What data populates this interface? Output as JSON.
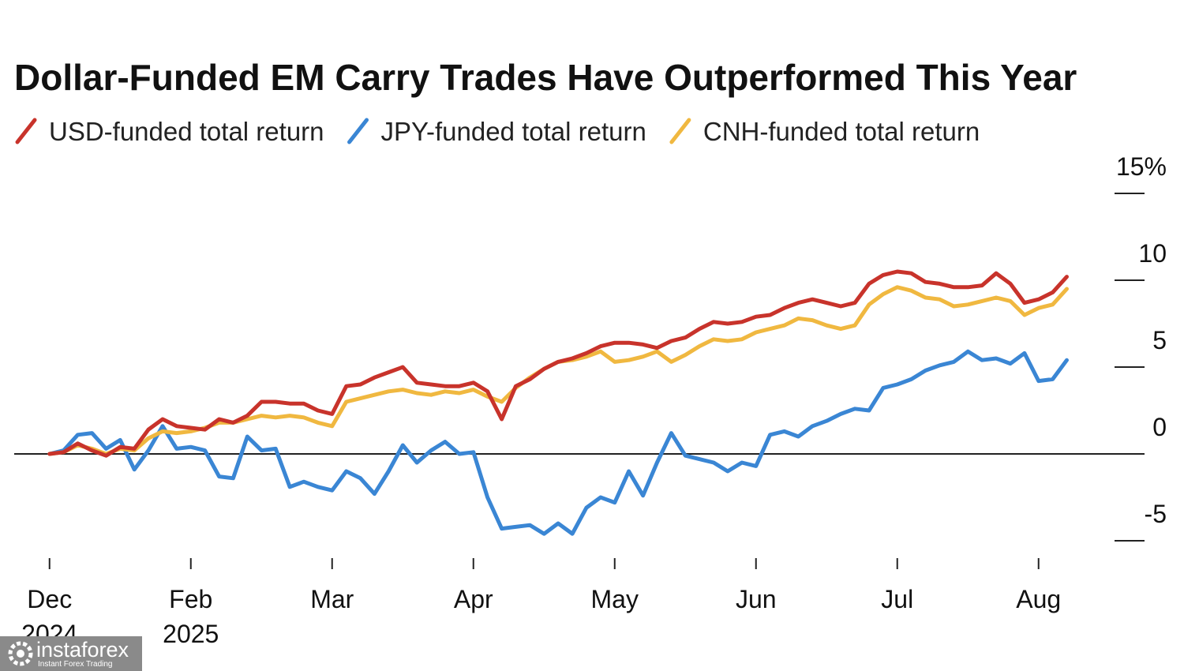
{
  "chart_data": {
    "type": "line",
    "title": "Dollar-Funded EM Carry Trades Have Outperformed This Year",
    "x": [
      0,
      0.1,
      0.2,
      0.3,
      0.4,
      0.5,
      0.6,
      0.7,
      0.8,
      0.9,
      1.0,
      1.1,
      1.2,
      1.3,
      1.4,
      1.5,
      1.6,
      1.7,
      1.8,
      1.9,
      2.0,
      2.1,
      2.2,
      2.3,
      2.4,
      2.5,
      2.6,
      2.7,
      2.8,
      2.9,
      3.0,
      3.1,
      3.2,
      3.3,
      3.4,
      3.5,
      3.6,
      3.7,
      3.8,
      3.9,
      4.0,
      4.1,
      4.2,
      4.3,
      4.4,
      4.5,
      4.6,
      4.7,
      4.8,
      4.9,
      5.0,
      5.1,
      5.2,
      5.3,
      5.4,
      5.5,
      5.6,
      5.7,
      5.8,
      5.9,
      6.0,
      6.1,
      6.2,
      6.3,
      6.4,
      6.5,
      6.6,
      6.7,
      6.8,
      6.9,
      7.0,
      7.1,
      7.2
    ],
    "series": [
      {
        "name": "USD-funded total return",
        "color": "#c8332b",
        "values": [
          0,
          0.1,
          0.6,
          0.2,
          -0.1,
          0.4,
          0.3,
          1.4,
          2.0,
          1.6,
          1.5,
          1.4,
          2.0,
          1.8,
          2.2,
          3.0,
          3.0,
          2.9,
          2.9,
          2.5,
          2.3,
          3.9,
          4.0,
          4.4,
          4.7,
          5.0,
          4.1,
          4.0,
          3.9,
          3.9,
          4.1,
          3.6,
          2.0,
          3.9,
          4.3,
          4.9,
          5.3,
          5.5,
          5.8,
          6.2,
          6.4,
          6.4,
          6.3,
          6.1,
          6.5,
          6.7,
          7.2,
          7.6,
          7.5,
          7.6,
          7.9,
          8.0,
          8.4,
          8.7,
          8.9,
          8.7,
          8.5,
          8.7,
          9.8,
          10.3,
          10.5,
          10.4,
          9.9,
          9.8,
          9.6,
          9.6,
          9.7,
          10.4,
          9.8,
          8.7,
          8.9,
          9.3,
          10.2
        ]
      },
      {
        "name": "JPY-funded total return",
        "color": "#3a86d4",
        "values": [
          0,
          0.2,
          1.1,
          1.2,
          0.3,
          0.8,
          -0.9,
          0.2,
          1.6,
          0.3,
          0.4,
          0.2,
          -1.3,
          -1.4,
          1.0,
          0.2,
          0.3,
          -1.9,
          -1.6,
          -1.9,
          -2.1,
          -1.0,
          -1.4,
          -2.3,
          -1.0,
          0.5,
          -0.5,
          0.2,
          0.7,
          0.0,
          0.1,
          -2.5,
          -4.3,
          -4.2,
          -4.1,
          -4.6,
          -4.0,
          -4.6,
          -3.1,
          -2.5,
          -2.8,
          -1.0,
          -2.4,
          -0.5,
          1.2,
          -0.1,
          -0.3,
          -0.5,
          -1.0,
          -0.5,
          -0.7,
          1.1,
          1.3,
          1.0,
          1.6,
          1.9,
          2.3,
          2.6,
          2.5,
          3.8,
          4.0,
          4.3,
          4.8,
          5.1,
          5.3,
          5.9,
          5.4,
          5.5,
          5.2,
          5.8,
          4.2,
          4.3,
          5.4
        ]
      },
      {
        "name": "CNH-funded total return",
        "color": "#f0b840",
        "values": [
          0,
          0.1,
          0.5,
          0.3,
          0.0,
          0.3,
          0.2,
          0.9,
          1.3,
          1.2,
          1.3,
          1.5,
          1.8,
          1.8,
          2.0,
          2.2,
          2.1,
          2.2,
          2.1,
          1.8,
          1.6,
          3.0,
          3.2,
          3.4,
          3.6,
          3.7,
          3.5,
          3.4,
          3.6,
          3.5,
          3.7,
          3.3,
          3.0,
          3.8,
          4.4,
          4.9,
          5.3,
          5.4,
          5.6,
          5.9,
          5.3,
          5.4,
          5.6,
          5.9,
          5.3,
          5.7,
          6.2,
          6.6,
          6.5,
          6.6,
          7.0,
          7.2,
          7.4,
          7.8,
          7.7,
          7.4,
          7.2,
          7.4,
          8.6,
          9.2,
          9.6,
          9.4,
          9.0,
          8.9,
          8.5,
          8.6,
          8.8,
          9.0,
          8.8,
          8.0,
          8.4,
          8.6,
          9.5
        ]
      }
    ],
    "xlim": [
      -0.25,
      7.75
    ],
    "xticks": [
      {
        "value": 0,
        "label": "Dec 2024"
      },
      {
        "value": 1,
        "label": "Feb 2025"
      },
      {
        "value": 2,
        "label": "Mar"
      },
      {
        "value": 3,
        "label": "Apr"
      },
      {
        "value": 4,
        "label": "May"
      },
      {
        "value": 5,
        "label": "Jun"
      },
      {
        "value": 6,
        "label": "Jul"
      },
      {
        "value": 7,
        "label": "Aug"
      }
    ],
    "ylim": [
      -5,
      15
    ],
    "yticks": [
      -5,
      0,
      5,
      10,
      {
        "value": 15,
        "label": "15%"
      }
    ],
    "y_axis_side": "right"
  },
  "watermark": {
    "name": "instaforex",
    "tagline": "Instant Forex Trading"
  }
}
